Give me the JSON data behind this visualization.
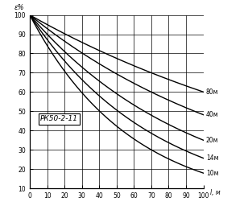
{
  "title_ylabel": "ε%",
  "xlabel": "l, м",
  "annotation": "РК50-2-11",
  "curves": [
    {
      "label": "80м",
      "k": 0.0051
    },
    {
      "label": "40м",
      "k": 0.0073
    },
    {
      "label": "20м",
      "k": 0.0105
    },
    {
      "label": "14м",
      "k": 0.0136
    },
    {
      "label": "10м",
      "k": 0.0172
    }
  ],
  "xlim": [
    0,
    100
  ],
  "ylim": [
    10,
    100
  ],
  "xticks": [
    0,
    10,
    20,
    30,
    40,
    50,
    60,
    70,
    80,
    90,
    100
  ],
  "yticks": [
    10,
    20,
    30,
    40,
    50,
    60,
    70,
    80,
    90,
    100
  ],
  "line_color": "#000000",
  "bg_color": "#ffffff",
  "grid_color": "#555555"
}
